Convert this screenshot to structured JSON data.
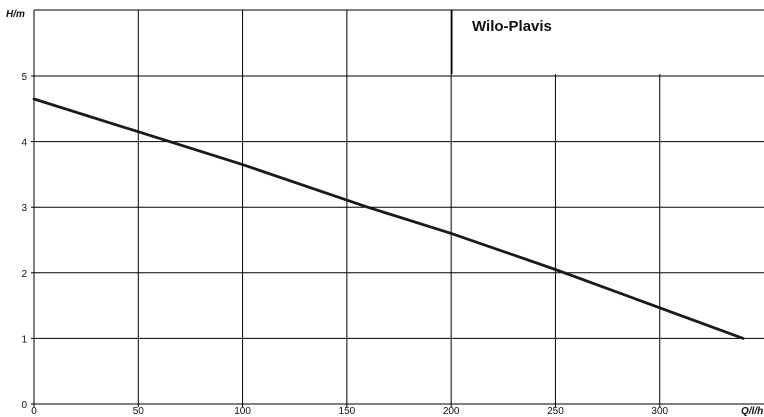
{
  "chart_data": {
    "type": "line",
    "title": "Wilo-Plavis",
    "xlabel": "Q/l/h",
    "ylabel": "H/m",
    "xlim": [
      0,
      350
    ],
    "ylim": [
      0,
      6
    ],
    "x_ticks": [
      "0",
      "50",
      "100",
      "150",
      "200",
      "250",
      "300"
    ],
    "y_ticks": [
      "0",
      "1",
      "2",
      "3",
      "4",
      "5"
    ],
    "grid": true,
    "series": [
      {
        "x": [
          0,
          65,
          100,
          160,
          200,
          250,
          340
        ],
        "y": [
          4.65,
          4.0,
          3.65,
          3.0,
          2.6,
          2.05,
          1.0
        ]
      }
    ],
    "colors": {
      "line": "#1a1a1a",
      "grid": "#000000",
      "background": "#ffffff"
    }
  }
}
